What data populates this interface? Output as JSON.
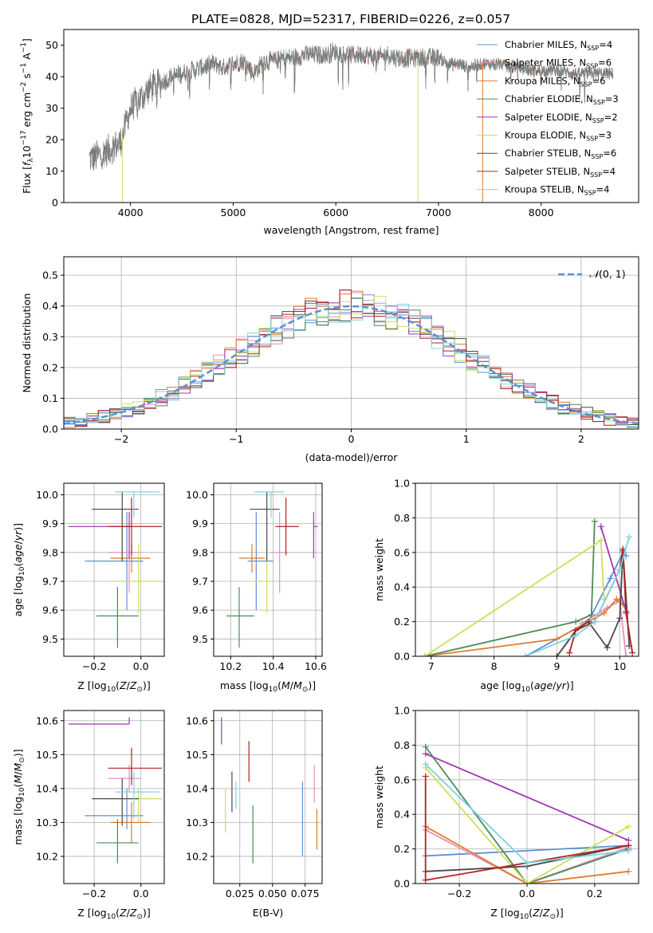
{
  "figure": {
    "title": "PLATE=0828, MJD=52317, FIBERID=0226, z=0.057"
  },
  "colors": {
    "Chabrier MILES": "#5b8fd6",
    "Salpeter MILES": "#e58fbf",
    "Kroupa MILES": "#e07b2a",
    "Chabrier ELODIE": "#4e8a55",
    "Salpeter ELODIE": "#9b3bb0",
    "Kroupa ELODIE": "#c8e05a",
    "Chabrier STELIB": "#4a4a4a",
    "Salpeter STELIB": "#b22020",
    "Kroupa STELIB": "#7fd3df"
  },
  "chart_data": [
    {
      "id": "spectrum",
      "type": "line",
      "xlabel": "wavelength [Angstrom, rest frame]",
      "ylabel": "Flux [f_λ 10^-17 erg cm^-2 s^-1 A^-1]",
      "xlim": [
        3350,
        8950
      ],
      "ylim": [
        0,
        55
      ],
      "xticks": [
        4000,
        5000,
        6000,
        7000,
        8000
      ],
      "yticks": [
        0,
        10,
        20,
        30,
        40,
        50
      ],
      "grid": false,
      "legend_position": "top-right",
      "legend": [
        {
          "model": "Chabrier MILES",
          "nssp": "4"
        },
        {
          "model": "Salpeter MILES",
          "nssp": "6"
        },
        {
          "model": "Kroupa MILES",
          "nssp": "6"
        },
        {
          "model": "Chabrier ELODIE",
          "nssp": "3"
        },
        {
          "model": "Salpeter ELODIE",
          "nssp": "2"
        },
        {
          "model": "Kroupa ELODIE",
          "nssp": "3"
        },
        {
          "model": "Chabrier STELIB",
          "nssp": "6"
        },
        {
          "model": "Salpeter STELIB",
          "nssp": "4"
        },
        {
          "model": "Kroupa STELIB",
          "nssp": "4"
        }
      ],
      "continuum": [
        [
          3600,
          14
        ],
        [
          3700,
          15
        ],
        [
          3800,
          17
        ],
        [
          3900,
          19
        ],
        [
          4000,
          30
        ],
        [
          4100,
          33
        ],
        [
          4200,
          37
        ],
        [
          4300,
          38
        ],
        [
          4400,
          40
        ],
        [
          4500,
          41
        ],
        [
          4600,
          42
        ],
        [
          4700,
          43
        ],
        [
          4800,
          44
        ],
        [
          4900,
          43
        ],
        [
          5000,
          44
        ],
        [
          5100,
          45
        ],
        [
          5200,
          41
        ],
        [
          5300,
          45
        ],
        [
          5400,
          45
        ],
        [
          5500,
          46
        ],
        [
          5600,
          46
        ],
        [
          5700,
          47
        ],
        [
          5800,
          47
        ],
        [
          5900,
          47
        ],
        [
          6000,
          48
        ],
        [
          6100,
          47
        ],
        [
          6200,
          47
        ],
        [
          6300,
          47
        ],
        [
          6400,
          46
        ],
        [
          6500,
          47
        ],
        [
          6600,
          46
        ],
        [
          6700,
          46
        ],
        [
          6800,
          46
        ],
        [
          6900,
          46
        ],
        [
          7000,
          46
        ],
        [
          7100,
          44
        ],
        [
          7200,
          44
        ],
        [
          7300,
          43
        ],
        [
          7400,
          44
        ],
        [
          7500,
          44
        ],
        [
          7600,
          44
        ],
        [
          7700,
          43
        ],
        [
          7800,
          43
        ],
        [
          7900,
          42
        ],
        [
          8000,
          42
        ],
        [
          8100,
          42
        ],
        [
          8200,
          42
        ],
        [
          8300,
          41
        ],
        [
          8400,
          41
        ],
        [
          8500,
          41
        ],
        [
          8600,
          41
        ],
        [
          8700,
          41
        ]
      ]
    },
    {
      "id": "residuals",
      "type": "area",
      "xlabel": "(data-model)/error",
      "ylabel": "Normed distribution",
      "xlim": [
        -2.5,
        2.5
      ],
      "ylim": [
        0,
        0.56
      ],
      "xticks": [
        -2,
        -1,
        0,
        1,
        2
      ],
      "yticks": [
        0.0,
        0.1,
        0.2,
        0.3,
        0.4,
        0.5
      ],
      "grid": true,
      "legend_position": "top-right",
      "legend_label": "N(0,1)",
      "bin_width": 0.1
    },
    {
      "id": "z-age",
      "type": "scatter",
      "xlabel": "Z [log10(Z/Z⊙)]",
      "ylabel": "age [log10(age/yr)]",
      "xlim": [
        -0.33,
        0.1
      ],
      "ylim": [
        9.44,
        10.04
      ],
      "xticks": [
        -0.2,
        0.0
      ],
      "yticks": [
        9.5,
        9.6,
        9.7,
        9.8,
        9.9,
        10.0
      ],
      "grid": true
    },
    {
      "id": "mass-age",
      "type": "scatter",
      "xlabel": "mass [log10(M/M⊙)]",
      "ylabel": "",
      "xlim": [
        10.12,
        10.63
      ],
      "ylim": [
        9.44,
        10.04
      ],
      "xticks": [
        10.2,
        10.4,
        10.6
      ],
      "yticks": [
        9.5,
        9.6,
        9.7,
        9.8,
        9.9,
        10.0
      ],
      "grid": true
    },
    {
      "id": "age-weight",
      "type": "line",
      "xlabel": "age [log10(age/yr)]",
      "ylabel": "mass weight",
      "xlim": [
        6.75,
        10.3
      ],
      "ylim": [
        0,
        1
      ],
      "xticks": [
        7,
        8,
        9,
        10
      ],
      "yticks": [
        0.0,
        0.2,
        0.4,
        0.6,
        0.8,
        1.0
      ],
      "grid": true
    },
    {
      "id": "z-mass",
      "type": "scatter",
      "xlabel": "Z [log10(Z/Z⊙)]",
      "ylabel": "mass [log10(M/M⊙)]",
      "xlim": [
        -0.33,
        0.1
      ],
      "ylim": [
        10.12,
        10.63
      ],
      "xticks": [
        -0.2,
        0.0
      ],
      "yticks": [
        10.2,
        10.3,
        10.4,
        10.5,
        10.6
      ],
      "grid": true
    },
    {
      "id": "ebv-mass",
      "type": "scatter",
      "xlabel": "E(B-V)",
      "ylabel": "",
      "xlim": [
        0.005,
        0.088
      ],
      "ylim": [
        10.12,
        10.63
      ],
      "xticks": [
        0.025,
        0.05,
        0.075
      ],
      "xticklabels": [
        "0.025",
        "0.050",
        "0.075"
      ],
      "yticks": [
        10.2,
        10.3,
        10.4,
        10.5,
        10.6
      ],
      "grid": true
    },
    {
      "id": "z-weight",
      "type": "line",
      "xlabel": "Z [log10(Z/Z⊙)]",
      "ylabel": "mass weight",
      "xlim": [
        -0.33,
        0.33
      ],
      "ylim": [
        0,
        1
      ],
      "xticks": [
        -0.2,
        0.0,
        0.2
      ],
      "yticks": [
        0.0,
        0.2,
        0.4,
        0.6,
        0.8,
        1.0
      ],
      "grid": true
    }
  ],
  "model_points": [
    {
      "model": "Chabrier MILES",
      "Z": -0.06,
      "Zlo": 0.18,
      "Zhi": 0.07,
      "age": 9.77,
      "agelo": 0.17,
      "agehi": 0.17,
      "mass": 10.32,
      "masslo": 0.04,
      "masshi": 0.08,
      "ebv": 0.073,
      "ebvlo": 10.2,
      "ebvhi": 10.42
    },
    {
      "model": "Salpeter MILES",
      "Z": -0.05,
      "Zlo": 0.09,
      "Zhi": 0.05,
      "age": 9.8,
      "agelo": 0.14,
      "agehi": 0.14,
      "mass": 10.43,
      "masslo": 0.04,
      "masshi": 0.04,
      "ebv": 0.082,
      "ebvlo": 10.36,
      "ebvhi": 10.47
    },
    {
      "model": "Kroupa MILES",
      "Z": -0.04,
      "Zlo": 0.09,
      "Zhi": 0.08,
      "age": 9.78,
      "agelo": 0.05,
      "agehi": 0.05,
      "mass": 10.3,
      "masslo": 0.06,
      "masshi": 0.06,
      "ebv": 0.084,
      "ebvlo": 10.22,
      "ebvhi": 10.34
    },
    {
      "model": "Chabrier ELODIE",
      "Z": -0.1,
      "Zlo": 0.09,
      "Zhi": 0.09,
      "age": 9.58,
      "agelo": 0.11,
      "agehi": 0.1,
      "mass": 10.24,
      "masslo": 0.06,
      "masshi": 0.07,
      "ebv": 0.035,
      "ebvlo": 10.18,
      "ebvhi": 10.35
    },
    {
      "model": "Salpeter ELODIE",
      "Z": -0.05,
      "Zlo": 0.26,
      "Zhi": 0.0,
      "age": 9.89,
      "agelo": 0.11,
      "agehi": 0.05,
      "mass": 10.59,
      "masslo": 0.0,
      "masshi": 0.02,
      "ebv": 0.011,
      "ebvlo": 10.53,
      "ebvhi": 10.61
    },
    {
      "model": "Kroupa ELODIE",
      "Z": -0.01,
      "Zlo": 0.12,
      "Zhi": 0.1,
      "age": 9.7,
      "agelo": 0.11,
      "agehi": 0.13,
      "mass": 10.37,
      "masslo": 0.07,
      "masshi": 0.03,
      "ebv": 0.014,
      "ebvlo": 10.27,
      "ebvhi": 10.4
    },
    {
      "model": "Chabrier STELIB",
      "Z": -0.08,
      "Zlo": 0.13,
      "Zhi": 0.07,
      "age": 9.95,
      "agelo": 0.18,
      "agehi": 0.06,
      "mass": 10.37,
      "masslo": 0.08,
      "masshi": 0.06,
      "ebv": 0.019,
      "ebvlo": 10.33,
      "ebvhi": 10.45
    },
    {
      "model": "Salpeter STELIB",
      "Z": -0.04,
      "Zlo": 0.1,
      "Zhi": 0.13,
      "age": 9.89,
      "agelo": 0.1,
      "agehi": 0.1,
      "mass": 10.46,
      "masslo": 0.05,
      "masshi": 0.06,
      "ebv": 0.032,
      "ebvlo": 10.42,
      "ebvhi": 10.54
    },
    {
      "model": "Kroupa STELIB",
      "Z": -0.03,
      "Zlo": 0.08,
      "Zhi": 0.11,
      "age": 10.01,
      "agelo": 0.09,
      "agehi": 0.0,
      "mass": 10.39,
      "masslo": 0.08,
      "masshi": 0.06,
      "ebv": 0.022,
      "ebvlo": 10.34,
      "ebvhi": 10.42
    }
  ],
  "age_weights": [
    {
      "model": "Chabrier MILES",
      "pts": [
        [
          8.5,
          0.0
        ],
        [
          9.5,
          0.2
        ],
        [
          9.85,
          0.45
        ],
        [
          10.05,
          0.6
        ],
        [
          10.1,
          0.58
        ]
      ]
    },
    {
      "model": "Salpeter MILES",
      "pts": [
        [
          9.0,
          0.0
        ],
        [
          9.4,
          0.19
        ],
        [
          9.8,
          0.28
        ],
        [
          10.0,
          0.32
        ],
        [
          10.1,
          0.0
        ]
      ]
    },
    {
      "model": "Kroupa MILES",
      "pts": [
        [
          6.9,
          0.0
        ],
        [
          9.0,
          0.1
        ],
        [
          9.75,
          0.25
        ],
        [
          9.95,
          0.33
        ],
        [
          10.05,
          0.3
        ]
      ]
    },
    {
      "model": "Chabrier ELODIE",
      "pts": [
        [
          6.9,
          0.0
        ],
        [
          9.3,
          0.2
        ],
        [
          9.55,
          0.24
        ],
        [
          9.6,
          0.78
        ]
      ]
    },
    {
      "model": "Salpeter ELODIE",
      "pts": [
        [
          9.7,
          0.75
        ],
        [
          10.1,
          0.26
        ]
      ]
    },
    {
      "model": "Kroupa ELODIE",
      "pts": [
        [
          6.9,
          0.0
        ],
        [
          9.7,
          0.67
        ],
        [
          9.75,
          0.33
        ]
      ]
    },
    {
      "model": "Chabrier STELIB",
      "pts": [
        [
          9.0,
          0.0
        ],
        [
          9.3,
          0.15
        ],
        [
          9.5,
          0.2
        ],
        [
          9.8,
          0.05
        ],
        [
          10.0,
          0.22
        ],
        [
          10.05,
          0.61
        ],
        [
          10.15,
          0.06
        ]
      ]
    },
    {
      "model": "Salpeter STELIB",
      "pts": [
        [
          9.2,
          0.02
        ],
        [
          9.3,
          0.15
        ],
        [
          9.6,
          0.2
        ],
        [
          10.0,
          0.5
        ],
        [
          10.05,
          0.62
        ],
        [
          10.1,
          0.25
        ],
        [
          10.2,
          0.02
        ]
      ]
    },
    {
      "model": "Kroupa STELIB",
      "pts": [
        [
          8.5,
          0.0
        ],
        [
          9.3,
          0.12
        ],
        [
          9.6,
          0.2
        ],
        [
          10.0,
          0.5
        ],
        [
          10.15,
          0.69
        ]
      ]
    }
  ],
  "z_weights": [
    {
      "model": "Chabrier MILES",
      "pts": [
        [
          -0.3,
          0.16
        ],
        [
          0.3,
          0.22
        ]
      ]
    },
    {
      "model": "Salpeter MILES",
      "pts": [
        [
          -0.3,
          0.31
        ],
        [
          0.0,
          0.0
        ],
        [
          0.3,
          0.21
        ]
      ]
    },
    {
      "model": "Kroupa MILES",
      "pts": [
        [
          -0.3,
          0.33
        ],
        [
          0.0,
          0.0
        ],
        [
          0.3,
          0.07
        ]
      ]
    },
    {
      "model": "Chabrier ELODIE",
      "pts": [
        [
          -0.3,
          0.79
        ],
        [
          0.0,
          0.0
        ],
        [
          0.3,
          0.2
        ]
      ]
    },
    {
      "model": "Salpeter ELODIE",
      "pts": [
        [
          -0.3,
          0.75
        ],
        [
          0.3,
          0.25
        ]
      ]
    },
    {
      "model": "Kroupa ELODIE",
      "pts": [
        [
          -0.3,
          0.67
        ],
        [
          0.0,
          0.0
        ],
        [
          0.3,
          0.33
        ]
      ]
    },
    {
      "model": "Chabrier STELIB",
      "pts": [
        [
          -0.3,
          0.07
        ],
        [
          0.0,
          0.1
        ],
        [
          0.3,
          0.22
        ]
      ]
    },
    {
      "model": "Salpeter STELIB",
      "pts": [
        [
          -0.3,
          0.62
        ],
        [
          -0.3,
          0.02
        ],
        [
          0.3,
          0.22
        ]
      ]
    },
    {
      "model": "Kroupa STELIB",
      "pts": [
        [
          -0.3,
          0.69
        ],
        [
          0.0,
          0.12
        ],
        [
          0.3,
          0.19
        ]
      ]
    }
  ]
}
